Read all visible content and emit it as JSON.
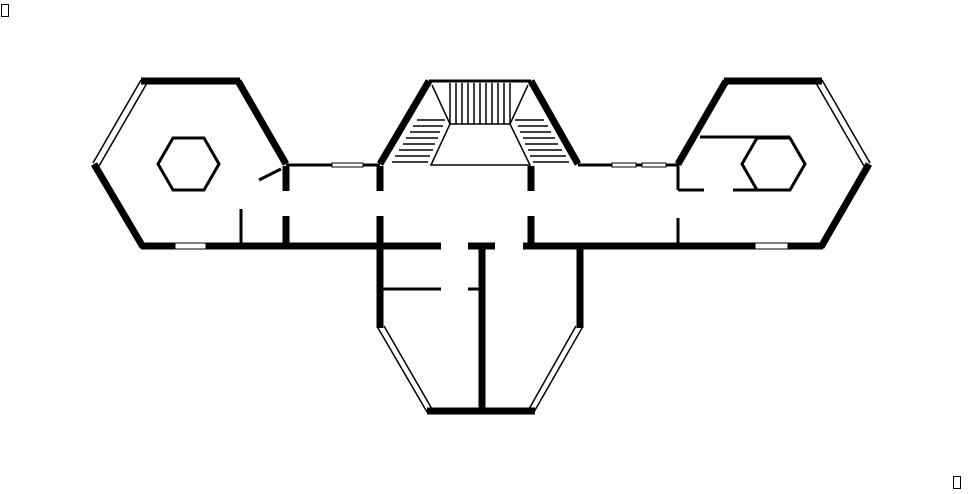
{
  "drawing": {
    "background": "#ffffff",
    "ink": "#000000",
    "corner_markers": [
      "top-left",
      "bottom-right"
    ]
  }
}
